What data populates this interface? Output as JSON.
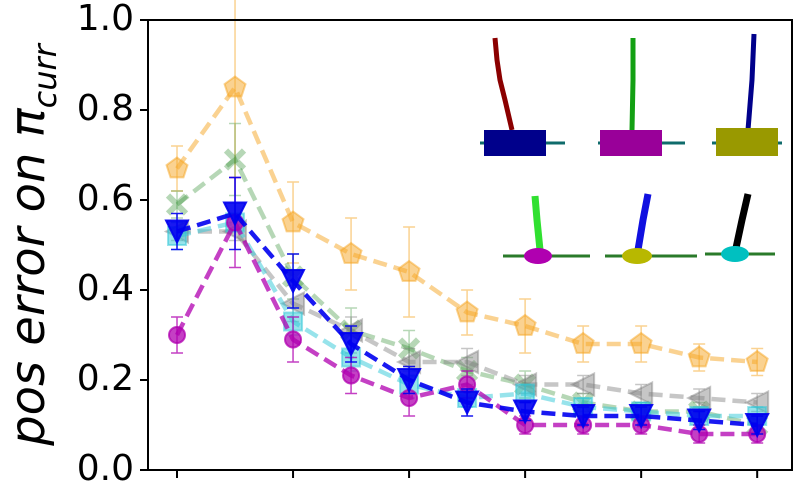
{
  "chart_data": {
    "type": "line",
    "ylabel": "pos error on π",
    "ylabel_subscript": "curr",
    "x": [
      0,
      1,
      2,
      3,
      4,
      5,
      6,
      7,
      8,
      9,
      10
    ],
    "xlim": [
      -0.5,
      10.6
    ],
    "xticks": [
      0,
      2,
      4,
      6,
      8,
      10
    ],
    "ylim": [
      0,
      1
    ],
    "yticks": [
      {
        "value": 0,
        "label": "0.0"
      },
      {
        "value": 0.2,
        "label": "0.2"
      },
      {
        "value": 0.4,
        "label": "0.4"
      },
      {
        "value": 0.6,
        "label": "0.6"
      },
      {
        "value": 0.8,
        "label": "0.8"
      },
      {
        "value": 1,
        "label": "1.0"
      }
    ],
    "series": [
      {
        "color": "#f5a623",
        "opacity": 0.5,
        "marker": "pentagon",
        "values": [
          0.67,
          0.85,
          0.55,
          0.48,
          0.44,
          0.35,
          0.32,
          0.28,
          0.28,
          0.25,
          0.24
        ],
        "errors": [
          0.05,
          0.2,
          0.09,
          0.08,
          0.1,
          0.05,
          0.06,
          0.04,
          0.04,
          0.03,
          0.03
        ]
      },
      {
        "color": "#2e8b2e",
        "opacity": 0.35,
        "marker": "x",
        "values": [
          0.59,
          0.69,
          0.43,
          0.31,
          0.27,
          0.22,
          0.19,
          0.15,
          0.13,
          0.13,
          0.1
        ],
        "errors": [
          0.03,
          0.08,
          0.05,
          0.05,
          0.04,
          0.03,
          0.03,
          0.02,
          0.02,
          0.02,
          0.02
        ]
      },
      {
        "color": "#808080",
        "opacity": 0.45,
        "marker": "triangle-left",
        "values": [
          0.53,
          0.53,
          0.37,
          0.31,
          0.24,
          0.24,
          0.19,
          0.19,
          0.17,
          0.16,
          0.15
        ],
        "errors": [
          0.02,
          0.02,
          0.04,
          0.03,
          0.03,
          0.03,
          0.02,
          0.02,
          0.02,
          0.02,
          0.02
        ]
      },
      {
        "color": "#30c8d8",
        "opacity": 0.5,
        "marker": "square",
        "values": [
          0.52,
          0.55,
          0.33,
          0.25,
          0.19,
          0.16,
          0.17,
          0.14,
          0.13,
          0.12,
          0.12
        ],
        "errors": [
          0.03,
          0.02,
          0.03,
          0.03,
          0.03,
          0.02,
          0.02,
          0.02,
          0.02,
          0.02,
          0.02
        ]
      },
      {
        "color": "#b000b0",
        "opacity": 0.75,
        "marker": "circle",
        "values": [
          0.3,
          0.55,
          0.29,
          0.21,
          0.16,
          0.19,
          0.1,
          0.1,
          0.1,
          0.08,
          0.08
        ],
        "errors": [
          0.04,
          0.1,
          0.05,
          0.04,
          0.04,
          0.03,
          0.02,
          0.02,
          0.02,
          0.02,
          0.02
        ]
      },
      {
        "color": "#0000f0",
        "opacity": 0.9,
        "marker": "triangle-down",
        "values": [
          0.53,
          0.57,
          0.42,
          0.28,
          0.2,
          0.15,
          0.13,
          0.12,
          0.12,
          0.11,
          0.1
        ],
        "errors": [
          0.04,
          0.08,
          0.06,
          0.04,
          0.03,
          0.03,
          0.02,
          0.02,
          0.02,
          0.02,
          0.02
        ]
      }
    ]
  }
}
